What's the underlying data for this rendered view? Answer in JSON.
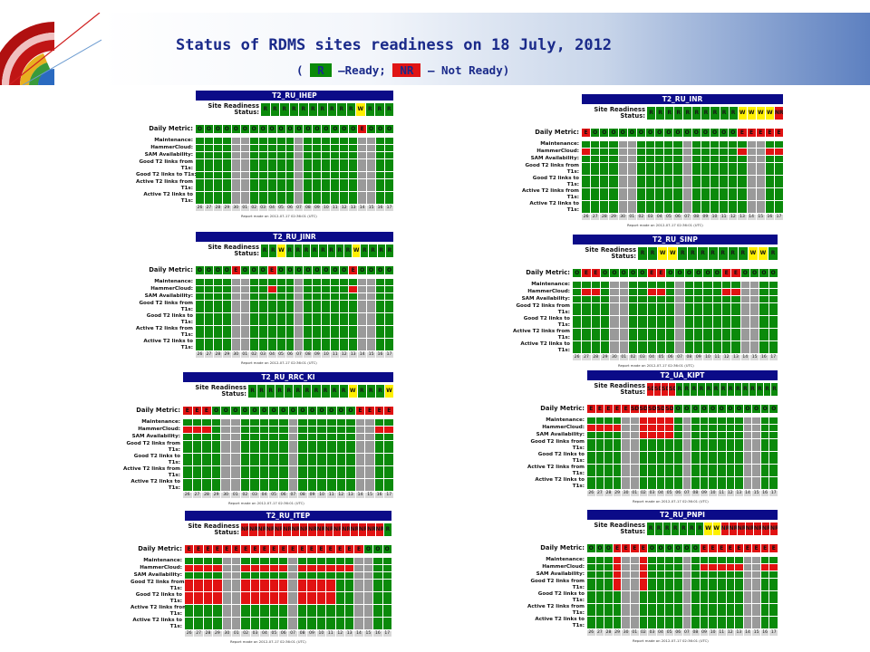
{
  "title": "Status of RDMS sites readiness on 18 July, 2012",
  "legend": {
    "open": "(",
    "ready_code": "R",
    "ready_text": "–Ready;",
    "notready_code": "NR",
    "notready_text": "– Not Ready)"
  },
  "colors": {
    "ok": "#0b8a0b",
    "error": "#e11212",
    "warning": "#fff000",
    "downtime": "#9a9a9a",
    "header": "#0b0b88"
  },
  "labels": {
    "site_readiness": "Site Readiness",
    "status": "Status:",
    "daily_metric": "Daily Metric:",
    "metrics": [
      "Maintenance:",
      "HammerCloud:",
      "SAM Availability:",
      "Good T2 links from|T1s:",
      "Good T2 links to T1s:",
      "Active T2 links from|T1s:",
      "Active T2 links to|T1s:"
    ],
    "metrics_alt": [
      "Maintenance:",
      "HammerCloud:",
      "SAM Availability:",
      "Good T2 links from|T1s:",
      "Good T2 links to|T1s:",
      "Active T2 links from|T1s:",
      "Active T2 links to|T1s:"
    ],
    "dates": [
      "26",
      "27",
      "28",
      "29",
      "30",
      "01",
      "02",
      "03",
      "04",
      "05",
      "06",
      "07",
      "08",
      "09",
      "10",
      "11",
      "12",
      "13",
      "14",
      "15",
      "16",
      "17"
    ],
    "report_note": "Report made on 2012-07-17 02:36:01 (UTC)"
  },
  "sites": [
    {
      "name": "T2_RU_IHEP",
      "readiness": [
        "R",
        "R",
        "R",
        "R",
        "R",
        "R",
        "R",
        "R",
        "R",
        "R",
        "W",
        "R",
        "R",
        "R"
      ],
      "daily": [
        "O",
        "O",
        "O",
        "O",
        "O",
        "O",
        "O",
        "O",
        "O",
        "O",
        "O",
        "O",
        "O",
        "O",
        "O",
        "O",
        "O",
        "O",
        "E",
        "O",
        "O",
        "O"
      ]
    },
    {
      "name": "T2_RU_INR",
      "readiness": [
        "R",
        "R",
        "R",
        "R",
        "R",
        "R",
        "R",
        "R",
        "R",
        "R",
        "W",
        "W",
        "W",
        "W",
        "NR"
      ],
      "daily": [
        "E",
        "O",
        "O",
        "O",
        "O",
        "O",
        "O",
        "O",
        "O",
        "O",
        "O",
        "O",
        "O",
        "O",
        "O",
        "O",
        "O",
        "E",
        "E",
        "E",
        "E",
        "E"
      ]
    },
    {
      "name": "T2_RU_JINR",
      "readiness": [
        "R",
        "R",
        "W",
        "R",
        "R",
        "R",
        "R",
        "R",
        "R",
        "R",
        "R",
        "W",
        "R",
        "R",
        "R",
        "R"
      ],
      "daily": [
        "O",
        "O",
        "O",
        "O",
        "E",
        "O",
        "O",
        "O",
        "E",
        "O",
        "O",
        "O",
        "O",
        "O",
        "O",
        "O",
        "O",
        "E",
        "O",
        "O",
        "O",
        "O"
      ]
    },
    {
      "name": "T2_RU_SINP",
      "readiness": [
        "R",
        "R",
        "W",
        "W",
        "R",
        "R",
        "R",
        "R",
        "R",
        "R",
        "R",
        "W",
        "W",
        "R"
      ],
      "daily": [
        "O",
        "E",
        "E",
        "O",
        "O",
        "O",
        "O",
        "O",
        "E",
        "E",
        "O",
        "O",
        "O",
        "O",
        "O",
        "O",
        "E",
        "E",
        "O",
        "O",
        "O",
        "O"
      ]
    },
    {
      "name": "T2_RU_RRC_KI",
      "readiness": [
        "R",
        "R",
        "R",
        "R",
        "R",
        "R",
        "R",
        "R",
        "R",
        "R",
        "R",
        "W",
        "R",
        "R",
        "R",
        "W"
      ],
      "daily": [
        "E",
        "E",
        "E",
        "O",
        "O",
        "O",
        "O",
        "O",
        "O",
        "O",
        "O",
        "O",
        "O",
        "O",
        "O",
        "O",
        "O",
        "O",
        "E",
        "E",
        "E",
        "E"
      ]
    },
    {
      "name": "T2_UA_KIPT",
      "readiness": [
        "SD",
        "SD",
        "SD",
        "SD",
        "R",
        "R",
        "R",
        "R",
        "R",
        "R",
        "R",
        "R",
        "R",
        "R",
        "R",
        "R",
        "R",
        "R"
      ],
      "daily": [
        "E",
        "E",
        "E",
        "E",
        "E",
        "SD",
        "SD",
        "SD",
        "SD",
        "SD",
        "O",
        "O",
        "O",
        "O",
        "O",
        "O",
        "O",
        "O",
        "O",
        "O",
        "O",
        "O"
      ]
    },
    {
      "name": "T2_RU_ITEP",
      "readiness": [
        "NR",
        "NR",
        "NR",
        "NR",
        "NR",
        "NR",
        "NR",
        "NR",
        "NR",
        "NR",
        "NR",
        "NR",
        "NR",
        "NR",
        "NR",
        "NR",
        "NR",
        "R"
      ],
      "daily": [
        "E",
        "E",
        "E",
        "E",
        "E",
        "E",
        "E",
        "E",
        "E",
        "E",
        "E",
        "E",
        "E",
        "E",
        "E",
        "E",
        "E",
        "E",
        "E",
        "O",
        "O",
        "O"
      ]
    },
    {
      "name": "T2_RU_PNPI",
      "readiness": [
        "R",
        "R",
        "R",
        "R",
        "R",
        "R",
        "R",
        "W",
        "W",
        "NR",
        "NR",
        "NR",
        "NR",
        "NR",
        "NR",
        "NR"
      ],
      "daily": [
        "O",
        "O",
        "O",
        "E",
        "E",
        "E",
        "E",
        "O",
        "O",
        "O",
        "O",
        "O",
        "O",
        "E",
        "E",
        "E",
        "E",
        "E",
        "E",
        "E",
        "E",
        "E"
      ]
    }
  ]
}
